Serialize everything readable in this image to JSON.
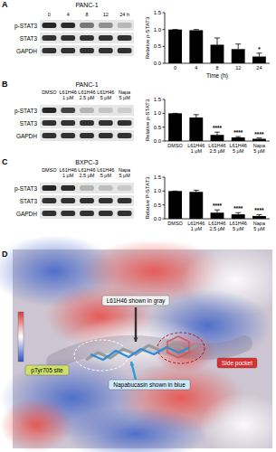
{
  "panels": [
    "A",
    "B",
    "C",
    "D"
  ],
  "blots": [
    {
      "cell_line": "PANC-1",
      "lanes": [
        "0",
        "4",
        "8",
        "12",
        "24 h"
      ],
      "rows": [
        "p-STAT3",
        "STAT3",
        "GAPDH"
      ]
    },
    {
      "cell_line": "PANC-1",
      "lanes": [
        "DMSO",
        "L61H46 1 μM",
        "L61H46 2.5 μM",
        "L61H46 5 μM",
        "Napa 5 μM"
      ],
      "rows": [
        "p-STAT3",
        "STAT3",
        "GAPDH"
      ]
    },
    {
      "cell_line": "BXPC-3",
      "lanes": [
        "DMSO",
        "L61H46 1 μM",
        "L61H46 2.5 μM",
        "L61H46 5 μM",
        "Napa 5 μM"
      ],
      "rows": [
        "p-STAT3",
        "STAT3",
        "GAPDH"
      ]
    }
  ],
  "chart_data": [
    {
      "type": "bar",
      "categories": [
        "0",
        "4",
        "8",
        "12",
        "24"
      ],
      "values": [
        1.0,
        0.98,
        0.55,
        0.42,
        0.2
      ],
      "errors": [
        0,
        0.02,
        0.2,
        0.15,
        0.1
      ],
      "annotations": [
        null,
        null,
        null,
        null,
        "*"
      ],
      "color": "#000000",
      "x_label": "Time (h)",
      "y_label": "Relative p-STAT3",
      "ylim": [
        0,
        1.5
      ],
      "yticks": [
        {
          "value": 0,
          "label": "0.0"
        },
        {
          "value": 0.5,
          "label": "0.5"
        },
        {
          "value": 1,
          "label": "1.0"
        },
        {
          "value": 1.5,
          "label": "1.5"
        }
      ]
    },
    {
      "type": "bar",
      "categories": [
        "DMSO",
        "L61H46 1 μM",
        "L61H46 2.5 μM",
        "L61H46 5 μM",
        "Napa 5 μM"
      ],
      "values": [
        1.0,
        0.85,
        0.22,
        0.13,
        0.08
      ],
      "errors": [
        0,
        0.1,
        0.1,
        0.03,
        0.03
      ],
      "annotations": [
        null,
        null,
        "****",
        "****",
        "****"
      ],
      "color": "#000000",
      "y_label": "Relative p-STAT3",
      "ylim": [
        0,
        1.5
      ],
      "yticks": [
        {
          "value": 0,
          "label": "0.0"
        },
        {
          "value": 0.5,
          "label": "0.5"
        },
        {
          "value": 1,
          "label": "1.0"
        },
        {
          "value": 1.5,
          "label": "1.5"
        }
      ]
    },
    {
      "type": "bar",
      "categories": [
        "DMSO",
        "L61H46 1 μM",
        "L61H46 2.5 μM",
        "L61H46 5 μM",
        "Napa 5 μM"
      ],
      "values": [
        1.0,
        0.97,
        0.22,
        0.16,
        0.1
      ],
      "errors": [
        0,
        0.06,
        0.1,
        0.06,
        0.05
      ],
      "annotations": [
        null,
        null,
        "****",
        "****",
        "****"
      ],
      "color": "#000000",
      "y_label": "Relative P-STAT3",
      "ylim": [
        0,
        1.5
      ],
      "yticks": [
        {
          "value": 0,
          "label": "0.0"
        },
        {
          "value": 0.5,
          "label": "0.5"
        },
        {
          "value": 1,
          "label": "1.0"
        },
        {
          "value": 1.5,
          "label": "1.5"
        }
      ]
    }
  ],
  "docking": {
    "annotations": [
      "L61H46 shown in gray",
      "Napabucasin shown in blue",
      "pTyr705 site",
      "Side pocket"
    ]
  }
}
